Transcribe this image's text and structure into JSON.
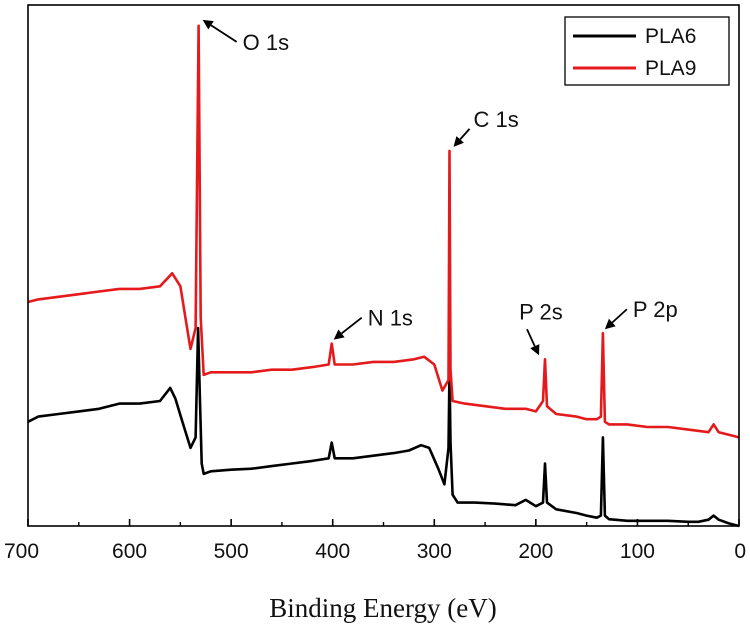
{
  "chart_data": {
    "type": "line",
    "title": "",
    "xlabel": "Binding Energy (eV)",
    "ylabel": "",
    "xlim": [
      700,
      0
    ],
    "ylim": [
      0,
      100
    ],
    "x_ticks": [
      "700",
      "600",
      "500",
      "400",
      "300",
      "200",
      "100",
      "0"
    ],
    "legend": {
      "position": "top-right",
      "entries": [
        "PLA6",
        "PLA9"
      ]
    },
    "series": [
      {
        "name": "PLA6",
        "color": "#000000",
        "points": [
          [
            700,
            20
          ],
          [
            690,
            21
          ],
          [
            670,
            21.5
          ],
          [
            650,
            22
          ],
          [
            630,
            22.5
          ],
          [
            610,
            23.5
          ],
          [
            590,
            23.5
          ],
          [
            570,
            24
          ],
          [
            560,
            26.5
          ],
          [
            555,
            24.5
          ],
          [
            548,
            20
          ],
          [
            540,
            15
          ],
          [
            535,
            17
          ],
          [
            532.5,
            38
          ],
          [
            531,
            26
          ],
          [
            529,
            12
          ],
          [
            527,
            10
          ],
          [
            520,
            10.5
          ],
          [
            500,
            10.8
          ],
          [
            480,
            11
          ],
          [
            460,
            11.5
          ],
          [
            440,
            12
          ],
          [
            420,
            12.5
          ],
          [
            404,
            13
          ],
          [
            401,
            16
          ],
          [
            398,
            13
          ],
          [
            380,
            13
          ],
          [
            360,
            13.5
          ],
          [
            340,
            14
          ],
          [
            325,
            14.5
          ],
          [
            313,
            15.5
          ],
          [
            305,
            15
          ],
          [
            296,
            11
          ],
          [
            290,
            8
          ],
          [
            286,
            15
          ],
          [
            285,
            30
          ],
          [
            284,
            16
          ],
          [
            282,
            6
          ],
          [
            277,
            4.5
          ],
          [
            260,
            4.5
          ],
          [
            240,
            4.3
          ],
          [
            220,
            4
          ],
          [
            210,
            5
          ],
          [
            200,
            3.8
          ],
          [
            193,
            4.5
          ],
          [
            191,
            12
          ],
          [
            189,
            4.5
          ],
          [
            180,
            3.2
          ],
          [
            160,
            2.5
          ],
          [
            150,
            2
          ],
          [
            140,
            1.6
          ],
          [
            136,
            2
          ],
          [
            134,
            17
          ],
          [
            132,
            2
          ],
          [
            128,
            1.3
          ],
          [
            110,
            1
          ],
          [
            90,
            1
          ],
          [
            70,
            1
          ],
          [
            50,
            0.8
          ],
          [
            40,
            0.8
          ],
          [
            30,
            1.2
          ],
          [
            25,
            2
          ],
          [
            20,
            1.2
          ],
          [
            10,
            0.5
          ],
          [
            0,
            0
          ]
        ]
      },
      {
        "name": "PLA9",
        "color": "#e41a1c",
        "points": [
          [
            700,
            43
          ],
          [
            690,
            43.5
          ],
          [
            670,
            44
          ],
          [
            650,
            44.5
          ],
          [
            630,
            45
          ],
          [
            610,
            45.5
          ],
          [
            590,
            45.5
          ],
          [
            570,
            46
          ],
          [
            558,
            48.5
          ],
          [
            550,
            46
          ],
          [
            545,
            40
          ],
          [
            540,
            34
          ],
          [
            535,
            38
          ],
          [
            532,
            96
          ],
          [
            530,
            40
          ],
          [
            527,
            29
          ],
          [
            520,
            29.5
          ],
          [
            500,
            29.5
          ],
          [
            480,
            29.5
          ],
          [
            460,
            30
          ],
          [
            440,
            30
          ],
          [
            420,
            30.5
          ],
          [
            404,
            31
          ],
          [
            401,
            35
          ],
          [
            398,
            31
          ],
          [
            380,
            31
          ],
          [
            360,
            31.5
          ],
          [
            340,
            31.5
          ],
          [
            320,
            32
          ],
          [
            310,
            32.5
          ],
          [
            300,
            31
          ],
          [
            292,
            26
          ],
          [
            286,
            28
          ],
          [
            285,
            72
          ],
          [
            284,
            30
          ],
          [
            282,
            24
          ],
          [
            270,
            23.5
          ],
          [
            250,
            23
          ],
          [
            230,
            22.5
          ],
          [
            210,
            22.5
          ],
          [
            200,
            22
          ],
          [
            193,
            24
          ],
          [
            191,
            32
          ],
          [
            189,
            23
          ],
          [
            180,
            21.5
          ],
          [
            160,
            21
          ],
          [
            150,
            20.5
          ],
          [
            140,
            20.5
          ],
          [
            136,
            21
          ],
          [
            134,
            37
          ],
          [
            132,
            20
          ],
          [
            128,
            19.5
          ],
          [
            110,
            19.5
          ],
          [
            90,
            19
          ],
          [
            70,
            19
          ],
          [
            50,
            18.5
          ],
          [
            30,
            18
          ],
          [
            25,
            19.5
          ],
          [
            20,
            18
          ],
          [
            10,
            17.5
          ],
          [
            0,
            17
          ]
        ]
      }
    ],
    "annotations": [
      {
        "label": "O 1s",
        "x": 532,
        "y": 96
      },
      {
        "label": "C 1s",
        "x": 285,
        "y": 72
      },
      {
        "label": "N 1s",
        "x": 401,
        "y": 35
      },
      {
        "label": "P 2s",
        "x": 191,
        "y": 32
      },
      {
        "label": "P 2p",
        "x": 134,
        "y": 37
      }
    ]
  }
}
